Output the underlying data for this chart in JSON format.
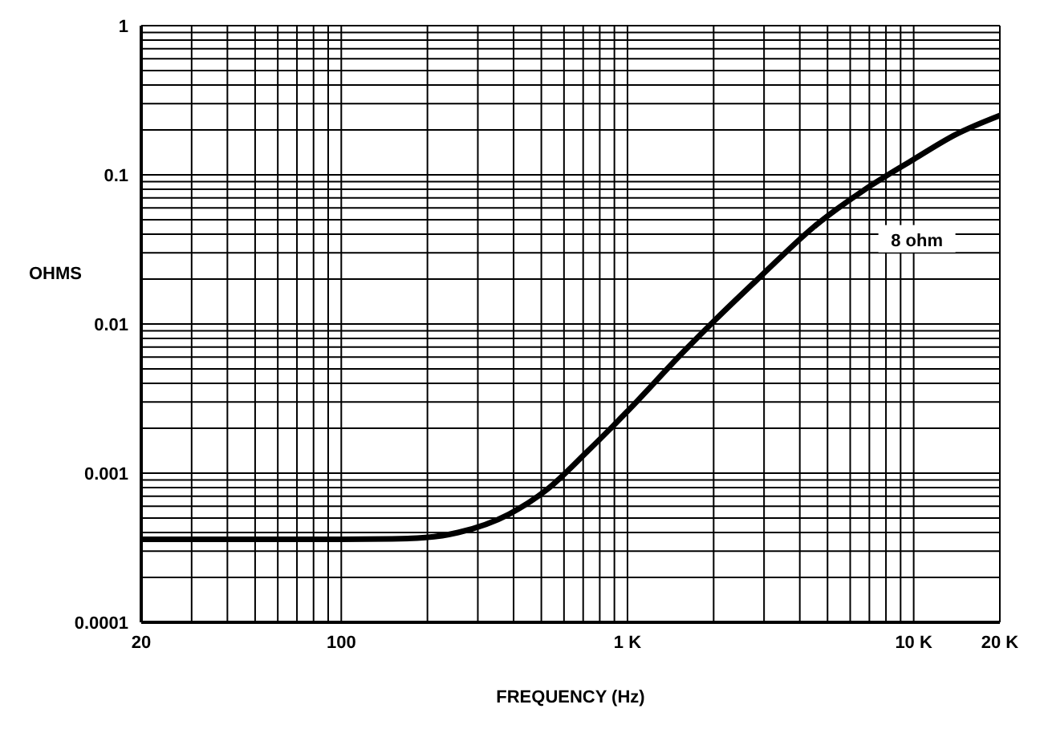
{
  "chart_data": {
    "type": "line",
    "xlabel": "FREQUENCY (Hz)",
    "ylabel": "OHMS",
    "log": "xy",
    "grid": true,
    "marker": "none",
    "line_style": "solid",
    "legend": false,
    "x": [
      20,
      50,
      100,
      150,
      197,
      256,
      385,
      525,
      725,
      1000,
      1580,
      2030,
      2930,
      4430,
      6700,
      10000,
      14000,
      20000
    ],
    "series": [
      {
        "name": "8 ohm",
        "color": "#000000",
        "values": [
          0.00036,
          0.00036,
          0.00036,
          0.000362,
          0.00037,
          0.0004,
          0.00053,
          0.00078,
          0.0014,
          0.0026,
          0.0066,
          0.0107,
          0.021,
          0.044,
          0.079,
          0.127,
          0.186,
          0.25
        ]
      }
    ],
    "xlim": [
      20,
      20000
    ],
    "xticks": [
      20,
      {
        "value": 30,
        "label": null
      },
      {
        "value": 40,
        "label": null
      },
      {
        "value": 50,
        "label": null
      },
      {
        "value": 60,
        "label": null
      },
      {
        "value": 70,
        "label": null
      },
      {
        "value": 80,
        "label": null
      },
      {
        "value": 90,
        "label": null
      },
      100,
      {
        "value": 200,
        "label": null
      },
      {
        "value": 300,
        "label": null
      },
      {
        "value": 400,
        "label": null
      },
      {
        "value": 500,
        "label": null
      },
      {
        "value": 600,
        "label": null
      },
      {
        "value": 700,
        "label": null
      },
      {
        "value": 800,
        "label": null
      },
      {
        "value": 900,
        "label": null
      },
      {
        "value": 1000,
        "label": "1 K"
      },
      {
        "value": 2000,
        "label": null
      },
      {
        "value": 3000,
        "label": null
      },
      {
        "value": 4000,
        "label": null
      },
      {
        "value": 5000,
        "label": null
      },
      {
        "value": 6000,
        "label": null
      },
      {
        "value": 7000,
        "label": null
      },
      {
        "value": 8000,
        "label": null
      },
      {
        "value": 9000,
        "label": null
      },
      {
        "value": 10000,
        "label": "10 K"
      },
      {
        "value": 20000,
        "label": "20 K"
      }
    ],
    "ylim": [
      0.0001,
      1
    ],
    "yticks": [
      0.0001,
      {
        "value": 0.0002,
        "label": null
      },
      {
        "value": 0.0003,
        "label": null
      },
      {
        "value": 0.0004,
        "label": null
      },
      {
        "value": 0.0005,
        "label": null
      },
      {
        "value": 0.0006,
        "label": null
      },
      {
        "value": 0.0007,
        "label": null
      },
      {
        "value": 0.0008,
        "label": null
      },
      {
        "value": 0.0009,
        "label": null
      },
      0.001,
      {
        "value": 0.002,
        "label": null
      },
      {
        "value": 0.003,
        "label": null
      },
      {
        "value": 0.004,
        "label": null
      },
      {
        "value": 0.005,
        "label": null
      },
      {
        "value": 0.006,
        "label": null
      },
      {
        "value": 0.007,
        "label": null
      },
      {
        "value": 0.008,
        "label": null
      },
      {
        "value": 0.009,
        "label": null
      },
      0.01,
      {
        "value": 0.02,
        "label": null
      },
      {
        "value": 0.03,
        "label": null
      },
      {
        "value": 0.04,
        "label": null
      },
      {
        "value": 0.05,
        "label": null
      },
      {
        "value": 0.06,
        "label": null
      },
      {
        "value": 0.07,
        "label": null
      },
      {
        "value": 0.08,
        "label": null
      },
      {
        "value": 0.09,
        "label": null
      },
      0.1,
      {
        "value": 0.2,
        "label": null
      },
      {
        "value": 0.3,
        "label": null
      },
      {
        "value": 0.4,
        "label": null
      },
      {
        "value": 0.5,
        "label": null
      },
      {
        "value": 0.6,
        "label": null
      },
      {
        "value": 0.7,
        "label": null
      },
      {
        "value": 0.8,
        "label": null
      },
      {
        "value": 0.9,
        "label": null
      },
      1
    ]
  }
}
